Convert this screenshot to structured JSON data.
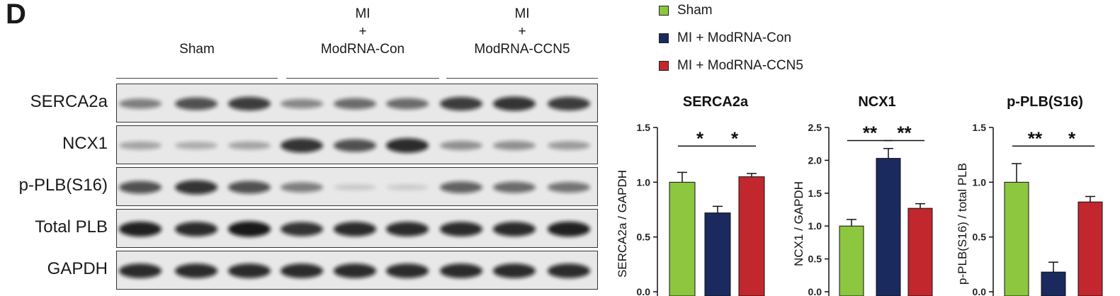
{
  "panel_letter": "D",
  "blot_groups": [
    {
      "lines": [
        "Sham"
      ]
    },
    {
      "lines": [
        "MI",
        "+",
        "ModRNA-Con"
      ]
    },
    {
      "lines": [
        "MI",
        "+",
        "ModRNA-CCN5"
      ]
    }
  ],
  "blot_rows": [
    {
      "label": "SERCA2a",
      "intensities": [
        0.45,
        0.7,
        0.8,
        0.4,
        0.55,
        0.55,
        0.8,
        0.85,
        0.8
      ]
    },
    {
      "label": "NCX1",
      "intensities": [
        0.25,
        0.2,
        0.25,
        0.85,
        0.7,
        0.9,
        0.35,
        0.35,
        0.3
      ]
    },
    {
      "label": "p-PLB(S16)",
      "intensities": [
        0.7,
        0.85,
        0.7,
        0.45,
        0.05,
        0.03,
        0.6,
        0.55,
        0.5
      ]
    },
    {
      "label": "Total PLB",
      "intensities": [
        0.95,
        0.9,
        1.0,
        0.85,
        0.9,
        0.9,
        0.9,
        0.9,
        0.95
      ]
    },
    {
      "label": "GAPDH",
      "intensities": [
        0.9,
        0.9,
        0.9,
        0.9,
        0.9,
        0.9,
        0.9,
        0.9,
        0.9
      ]
    }
  ],
  "legend": [
    {
      "label": "Sham",
      "color": "#8dc63f"
    },
    {
      "label": "MI + ModRNA-Con",
      "color": "#1b2a5e"
    },
    {
      "label": "MI + ModRNA-CCN5",
      "color": "#c1272d"
    }
  ],
  "chart_data": [
    {
      "type": "bar",
      "title": "SERCA2a",
      "ylabel": "SERCA2a / GAPDH",
      "ylim": [
        0,
        1.5
      ],
      "yticks": [
        "0.0",
        "0.5",
        "1.0",
        "1.5"
      ],
      "categories": [
        "Sham",
        "MI + ModRNA-Con",
        "MI + ModRNA-CCN5"
      ],
      "values": [
        1.0,
        0.72,
        1.05
      ],
      "errors": [
        0.09,
        0.06,
        0.03
      ],
      "colors": [
        "#8dc63f",
        "#1b2a5e",
        "#c1272d"
      ],
      "significance": [
        {
          "from": 0,
          "to": 1,
          "label": "*",
          "y": 1.33
        },
        {
          "from": 1,
          "to": 2,
          "label": "*",
          "y": 1.33
        }
      ]
    },
    {
      "type": "bar",
      "title": "NCX1",
      "ylabel": "NCX1 / GAPDH",
      "ylim": [
        0,
        2.5
      ],
      "yticks": [
        "0.0",
        "0.5",
        "1.0",
        "1.5",
        "2.0",
        "2.5"
      ],
      "categories": [
        "Sham",
        "MI + ModRNA-Con",
        "MI + ModRNA-CCN5"
      ],
      "values": [
        1.0,
        2.03,
        1.27
      ],
      "errors": [
        0.1,
        0.15,
        0.07
      ],
      "colors": [
        "#8dc63f",
        "#1b2a5e",
        "#c1272d"
      ],
      "significance": [
        {
          "from": 0,
          "to": 1,
          "label": "**",
          "y": 2.3
        },
        {
          "from": 1,
          "to": 2,
          "label": "**",
          "y": 2.3
        }
      ]
    },
    {
      "type": "bar",
      "title": "p-PLB(S16)",
      "ylabel": "p-PLB(S16) / total PLB",
      "ylim": [
        0,
        1.5
      ],
      "yticks": [
        "0.0",
        "0.5",
        "1.0",
        "1.5"
      ],
      "categories": [
        "Sham",
        "MI + ModRNA-Con",
        "MI + ModRNA-CCN5"
      ],
      "values": [
        1.0,
        0.18,
        0.82
      ],
      "errors": [
        0.17,
        0.09,
        0.05
      ],
      "colors": [
        "#8dc63f",
        "#1b2a5e",
        "#c1272d"
      ],
      "significance": [
        {
          "from": 0,
          "to": 1,
          "label": "**",
          "y": 1.33
        },
        {
          "from": 1,
          "to": 2,
          "label": "*",
          "y": 1.33
        }
      ]
    }
  ]
}
